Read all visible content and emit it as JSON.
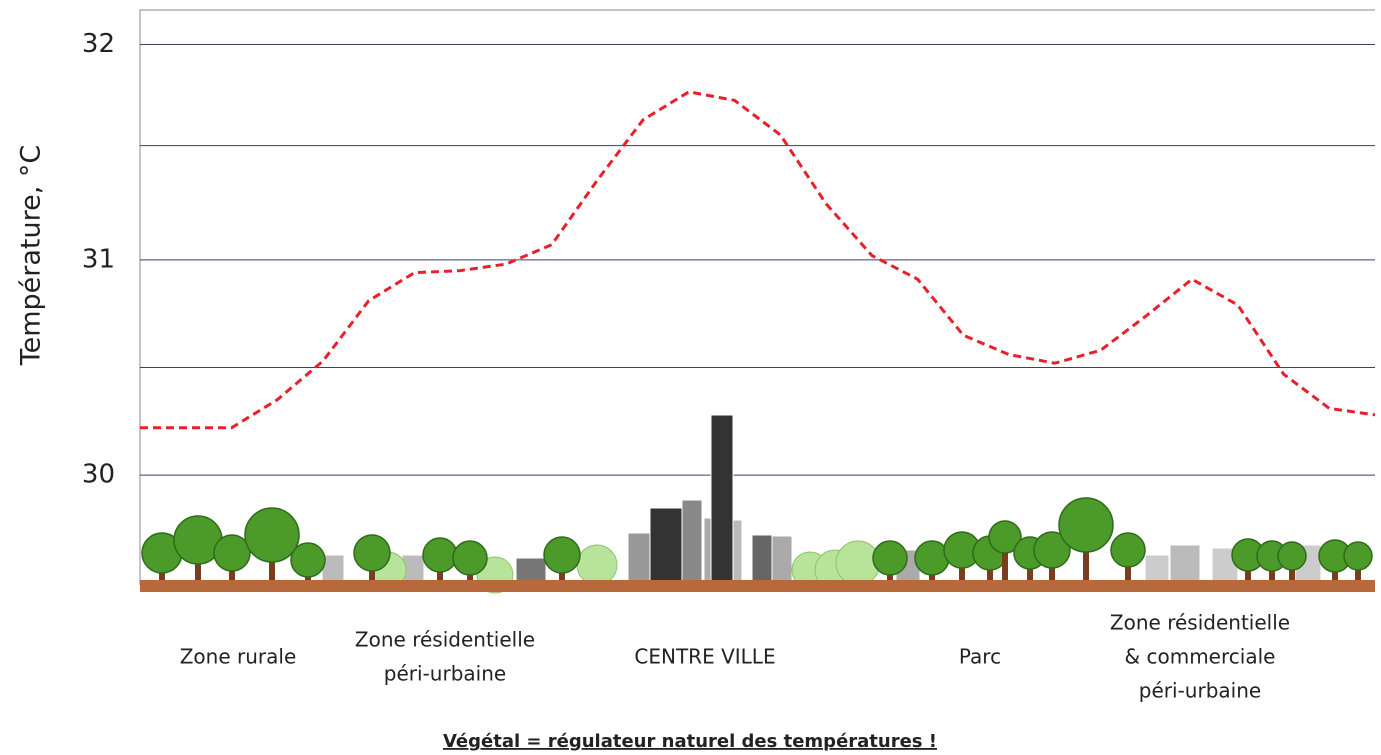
{
  "chart_data": {
    "type": "line",
    "y_label": "Température, °C",
    "ylim": [
      29.49,
      32.16
    ],
    "yticks": [
      30,
      31,
      32
    ],
    "minor_gridlines": [
      30.5,
      31.53
    ],
    "grid": true,
    "categories": [
      null,
      null,
      null,
      null,
      null,
      null,
      null,
      null,
      null,
      null,
      null,
      null,
      null,
      null,
      null,
      null,
      null,
      null,
      null,
      null,
      null,
      null,
      null,
      null,
      null,
      null,
      null,
      null
    ],
    "series": [
      {
        "color": "#e8202a",
        "values": [
          30.22,
          30.22,
          30.22,
          30.35,
          30.53,
          30.81,
          30.94,
          30.95,
          30.98,
          31.07,
          31.37,
          31.65,
          31.78,
          31.74,
          31.58,
          31.26,
          31.02,
          30.91,
          30.65,
          30.56,
          30.52,
          30.58,
          30.74,
          30.91,
          30.79,
          30.47,
          30.31,
          30.28
        ]
      }
    ],
    "zones": [
      [
        "Zone rurale"
      ],
      [
        "Zone résidentielle",
        "péri-urbaine"
      ],
      [
        "CENTRE VILLE"
      ],
      [
        "Parc"
      ],
      [
        "Zone résidentielle",
        "& commerciale",
        "péri-urbaine"
      ]
    ],
    "footer": "Végétal = régulateur naturel des températures !"
  }
}
